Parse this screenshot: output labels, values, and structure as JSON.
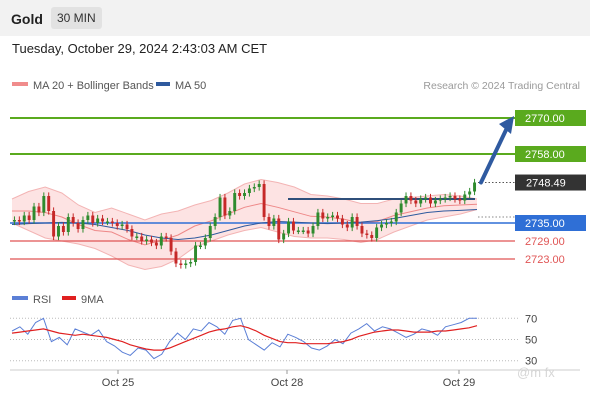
{
  "header": {
    "title": "Gold",
    "timeframe": "30 MIN"
  },
  "datetime": "Tuesday, October 29, 2024 2:43:03 AM CET",
  "legend": {
    "bollinger": {
      "label": "MA 20 + Bollinger Bands",
      "color": "#f08c8c"
    },
    "ma50": {
      "label": "MA 50",
      "color": "#2f5a9e"
    },
    "rsi": {
      "label": "RSI",
      "color": "#5b7fd6"
    },
    "ma9": {
      "label": "9MA",
      "color": "#e02020"
    }
  },
  "credit": "Research © 2024 Trading Central",
  "watermark": "@m  fx",
  "colors": {
    "up": "#2e8b2e",
    "down": "#c62828",
    "resistance": "#5aaa1e",
    "pivot": "#2f6fd6",
    "support": "#e05555",
    "arrow": "#2f5aa0",
    "current": "#333333"
  },
  "chart_data": [
    {
      "type": "candlestick",
      "instrument": "Gold",
      "interval": "30 MIN",
      "x_ticks": [
        "Oct 25",
        "Oct 28",
        "Oct 29"
      ],
      "ylim": [
        2716,
        2776
      ],
      "levels": [
        {
          "value": 2770.0,
          "label": "2770.00",
          "kind": "resistance"
        },
        {
          "value": 2758.0,
          "label": "2758.00",
          "kind": "resistance"
        },
        {
          "value": 2748.49,
          "label": "2748.49",
          "kind": "current"
        },
        {
          "value": 2735.0,
          "label": "2735.00",
          "kind": "pivot"
        },
        {
          "value": 2729.0,
          "label": "2729.00",
          "kind": "support"
        },
        {
          "value": 2723.0,
          "label": "2723.00",
          "kind": "support"
        }
      ],
      "forecast": {
        "from": 2748.5,
        "to": 2770.0,
        "direction": "up"
      },
      "close": [
        2736.0,
        2735.5,
        2737.5,
        2736.0,
        2740.5,
        2738.5,
        2744.0,
        2739.0,
        2730.5,
        2734.0,
        2732.0,
        2737.0,
        2735.0,
        2733.0,
        2736.0,
        2737.5,
        2735.0,
        2736.5,
        2735.5,
        2735.5,
        2735.0,
        2734.0,
        2734.5,
        2733.0,
        2730.5,
        2730.5,
        2729.0,
        2729.5,
        2728.5,
        2727.5,
        2730.5,
        2730.0,
        2725.5,
        2721.5,
        2721.0,
        2721.5,
        2722.0,
        2727.5,
        2727.5,
        2730.0,
        2734.0,
        2737.0,
        2743.5,
        2737.5,
        2739.0,
        2745.0,
        2744.0,
        2745.0,
        2746.5,
        2747.0,
        2748.0,
        2737.0,
        2734.0,
        2736.5,
        2729.5,
        2731.5,
        2735.5,
        2732.5,
        2732.5,
        2732.5,
        2731.5,
        2734.0,
        2738.5,
        2736.5,
        2737.0,
        2737.5,
        2736.5,
        2734.5,
        2733.5,
        2737.0,
        2734.0,
        2731.5,
        2731.0,
        2730.0,
        2733.5,
        2734.5,
        2735.0,
        2735.5,
        2738.5,
        2741.5,
        2744.0,
        2742.5,
        2741.5,
        2743.0,
        2743.5,
        2741.5,
        2742.5,
        2743.0,
        2743.5,
        2744.0,
        2743.0,
        2742.5,
        2744.5,
        2745.5,
        2748.5
      ],
      "bollinger": {
        "upper": [
          2743.0,
          2745.5,
          2747.0,
          2745.0,
          2741.0,
          2738.5,
          2740.0,
          2738.0,
          2736.0,
          2738.0,
          2739.0,
          2741.0,
          2742.5,
          2745.0,
          2748.0,
          2749.5,
          2748.5,
          2747.0,
          2744.5,
          2744.0,
          2743.0,
          2741.5,
          2741.5,
          2743.0,
          2743.5,
          2744.0,
          2744.5,
          2744.0,
          2743.0
        ],
        "lower": [
          2735.0,
          2732.5,
          2730.0,
          2729.0,
          2728.0,
          2726.5,
          2724.0,
          2721.0,
          2719.5,
          2720.5,
          2723.0,
          2727.0,
          2729.0,
          2731.0,
          2732.5,
          2733.5,
          2732.0,
          2730.5,
          2730.0,
          2730.0,
          2729.5,
          2728.5,
          2729.5,
          2732.0,
          2734.0,
          2736.0,
          2737.0,
          2738.0,
          2739.5
        ]
      },
      "ma50": [
        2734.5,
        2734.8,
        2735.0,
        2735.2,
        2735.0,
        2734.5,
        2733.5,
        2732.5,
        2731.0,
        2730.0,
        2729.5,
        2730.0,
        2731.0,
        2732.5,
        2734.0,
        2735.0,
        2735.5,
        2735.3,
        2735.0,
        2734.8,
        2735.0,
        2735.3,
        2735.8,
        2736.5,
        2737.5,
        2738.5,
        2739.0,
        2739.2,
        2739.5
      ]
    },
    {
      "type": "line",
      "title": "RSI",
      "ylim": [
        25,
        75
      ],
      "y_ticks": [
        70,
        50,
        30
      ],
      "series": [
        {
          "name": "RSI",
          "values": [
            58,
            62,
            55,
            66,
            70,
            48,
            52,
            45,
            60,
            57,
            54,
            59,
            48,
            44,
            38,
            35,
            42,
            40,
            32,
            36,
            48,
            56,
            50,
            60,
            58,
            66,
            62,
            55,
            68,
            70,
            50,
            45,
            40,
            47,
            43,
            55,
            52,
            48,
            42,
            40,
            44,
            50,
            46,
            56,
            60,
            65,
            58,
            62,
            60,
            56,
            52,
            55,
            60,
            58,
            54,
            62,
            64,
            66,
            70,
            70
          ]
        },
        {
          "name": "9MA",
          "values": [
            56,
            57,
            58,
            59,
            60,
            58,
            56,
            55,
            54,
            55,
            54,
            53,
            52,
            50,
            48,
            45,
            43,
            41,
            40,
            40,
            42,
            45,
            48,
            51,
            54,
            57,
            59,
            60,
            62,
            63,
            61,
            58,
            54,
            51,
            48,
            47,
            47,
            46,
            46,
            46,
            46,
            47,
            48,
            50,
            53,
            55,
            57,
            58,
            59,
            59,
            58,
            57,
            57,
            57,
            58,
            58,
            59,
            60,
            61,
            63
          ]
        }
      ]
    }
  ]
}
